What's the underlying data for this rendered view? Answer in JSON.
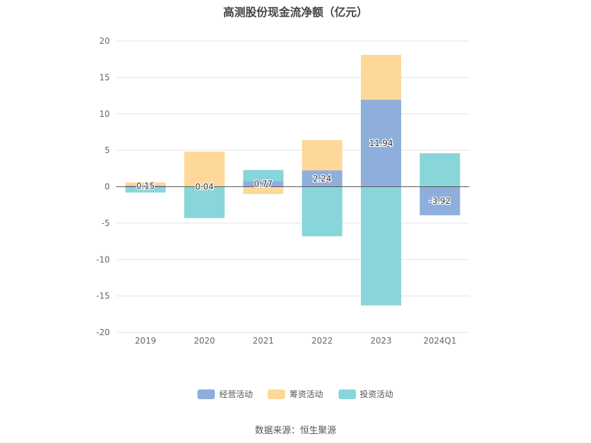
{
  "source_text": "数据来源：恒生聚源",
  "chart_data": {
    "type": "bar",
    "stacked": true,
    "title": "高测股份现金流净额（亿元）",
    "categories": [
      "2019",
      "2020",
      "2021",
      "2022",
      "2023",
      "2024Q1"
    ],
    "ylim": [
      -20,
      20
    ],
    "yticks": [
      20,
      15,
      10,
      5,
      0,
      -5,
      -10,
      -15,
      -20
    ],
    "grid": true,
    "legend_position": "bottom",
    "series": [
      {
        "name": "经营活动",
        "color": "#8eaedc",
        "values": [
          0.15,
          0.04,
          0.77,
          2.24,
          11.94,
          -3.92
        ]
      },
      {
        "name": "筹资活动",
        "color": "#fed898",
        "values": [
          0.45,
          4.76,
          -1.0,
          4.16,
          6.16,
          0.0
        ]
      },
      {
        "name": "投资活动",
        "color": "#88d6da",
        "values": [
          -0.8,
          -4.3,
          1.53,
          -6.8,
          -16.3,
          4.6
        ]
      }
    ],
    "data_labels": [
      "0.15",
      "0.04",
      "0.77",
      "2.24",
      "11.94",
      "-3.92"
    ]
  }
}
